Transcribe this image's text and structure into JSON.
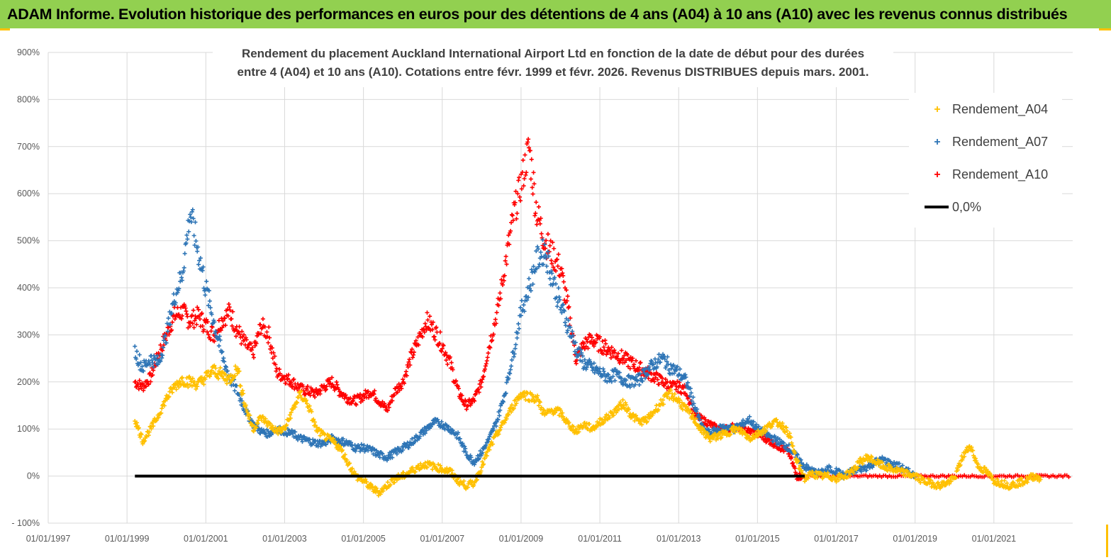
{
  "header": {
    "title": "ADAM Informe. Evolution historique des performances en euros pour des détentions de 4 ans (A04) à 10 ans (A10) avec les revenus connus distribués"
  },
  "colors": {
    "header_bg": "#92d050",
    "corner": "#ffc000",
    "A04": "#ffc000",
    "A07": "#2e75b6",
    "A10": "#ff0000",
    "zero": "#000000",
    "grid": "#d9d9d9"
  },
  "chart_data": {
    "type": "scatter",
    "title_lines": [
      "Rendement du placement Auckland International Airport Ltd en fonction de la date de début pour des durées",
      "entre 4 (A04) et 10 ans (A10). Cotations entre févr. 1999 et févr. 2026. Revenus DISTRIBUES depuis mars. 2001."
    ],
    "xlabel": "",
    "ylabel": "",
    "x_range": [
      1997.0,
      2023.0
    ],
    "ylim": [
      -100,
      900
    ],
    "y_ticks": [
      -100,
      0,
      100,
      200,
      300,
      400,
      500,
      600,
      700,
      800,
      900
    ],
    "y_tick_labels": [
      "- 100%",
      "0%",
      "100%",
      "200%",
      "300%",
      "400%",
      "500%",
      "600%",
      "700%",
      "800%",
      "900%"
    ],
    "x_tick_labels": [
      "01/01/1997",
      "01/01/1999",
      "01/01/2001",
      "01/01/2003",
      "01/01/2005",
      "01/01/2007",
      "01/01/2009",
      "01/01/2011",
      "01/01/2013",
      "01/01/2015",
      "01/01/2017",
      "01/01/2019",
      "01/01/2021"
    ],
    "x_tick_years": [
      1997,
      1999,
      2001,
      2003,
      2005,
      2007,
      2009,
      2011,
      2013,
      2015,
      2017,
      2019,
      2021
    ],
    "grid": "horizontal and vertical",
    "legend_position": "top-right",
    "series": [
      {
        "name": "Rendement_A04",
        "color": "#ffc000",
        "marker": "+",
        "x": [
          1999.2,
          1999.4,
          1999.6,
          1999.8,
          2000.0,
          2000.2,
          2000.4,
          2000.6,
          2000.8,
          2001.0,
          2001.2,
          2001.4,
          2001.6,
          2001.8,
          2002.0,
          2002.2,
          2002.4,
          2002.6,
          2002.8,
          2003.0,
          2003.2,
          2003.4,
          2003.6,
          2003.8,
          2004.0,
          2004.2,
          2004.4,
          2004.6,
          2004.8,
          2005.0,
          2005.2,
          2005.4,
          2005.6,
          2005.8,
          2006.0,
          2006.2,
          2006.4,
          2006.6,
          2006.8,
          2007.0,
          2007.2,
          2007.4,
          2007.6,
          2007.8,
          2008.0,
          2008.2,
          2008.4,
          2008.6,
          2008.8,
          2009.0,
          2009.2,
          2009.4,
          2009.6,
          2009.8,
          2010.0,
          2010.2,
          2010.4,
          2010.6,
          2010.8,
          2011.0,
          2011.2,
          2011.4,
          2011.6,
          2011.8,
          2012.0,
          2012.2,
          2012.4,
          2012.6,
          2012.8,
          2013.0,
          2013.2,
          2013.4,
          2013.6,
          2013.8,
          2014.0,
          2014.2,
          2014.4,
          2014.6,
          2014.8,
          2015.0,
          2015.2,
          2015.4,
          2015.6,
          2015.8,
          2016.0,
          2016.2,
          2016.4,
          2016.6,
          2016.8,
          2017.0,
          2017.2,
          2017.4,
          2017.6,
          2017.8,
          2018.0,
          2018.2,
          2018.4,
          2018.6,
          2018.8,
          2019.0,
          2019.2,
          2019.4,
          2019.6,
          2019.8,
          2020.0,
          2020.2,
          2020.4,
          2020.6,
          2020.8,
          2021.0,
          2021.2,
          2021.4,
          2021.6,
          2021.8,
          2022.0,
          2022.2
        ],
        "y": [
          120,
          75,
          100,
          130,
          165,
          190,
          205,
          200,
          195,
          210,
          225,
          215,
          205,
          230,
          150,
          100,
          125,
          110,
          95,
          100,
          140,
          175,
          150,
          100,
          85,
          75,
          60,
          30,
          0,
          -10,
          -25,
          -35,
          -20,
          -5,
          0,
          10,
          20,
          25,
          20,
          15,
          10,
          -10,
          -20,
          -15,
          20,
          60,
          90,
          120,
          150,
          175,
          170,
          165,
          130,
          140,
          135,
          110,
          95,
          110,
          100,
          115,
          125,
          140,
          155,
          130,
          115,
          120,
          140,
          160,
          175,
          160,
          140,
          120,
          95,
          80,
          85,
          90,
          100,
          95,
          80,
          90,
          100,
          115,
          110,
          90,
          30,
          -5,
          5,
          0,
          0,
          -5,
          0,
          10,
          30,
          40,
          30,
          20,
          15,
          10,
          5,
          0,
          -10,
          -15,
          -20,
          -15,
          -5,
          40,
          65,
          20,
          10,
          -10,
          -15,
          -20,
          -15,
          -10,
          0,
          -5
        ],
        "y_extra_scatter": "dense band around series"
      },
      {
        "name": "Rendement_A07",
        "color": "#2e75b6",
        "marker": "+",
        "x": [
          1999.2,
          1999.4,
          1999.6,
          1999.8,
          2000.0,
          2000.2,
          2000.4,
          2000.6,
          2000.8,
          2001.0,
          2001.2,
          2001.4,
          2001.6,
          2001.8,
          2002.0,
          2002.2,
          2002.4,
          2002.6,
          2002.8,
          2003.0,
          2003.2,
          2003.4,
          2003.6,
          2003.8,
          2004.0,
          2004.2,
          2004.4,
          2004.6,
          2004.8,
          2005.0,
          2005.2,
          2005.4,
          2005.6,
          2005.8,
          2006.0,
          2006.2,
          2006.4,
          2006.6,
          2006.8,
          2007.0,
          2007.2,
          2007.4,
          2007.6,
          2007.8,
          2008.0,
          2008.2,
          2008.4,
          2008.6,
          2008.8,
          2009.0,
          2009.2,
          2009.4,
          2009.6,
          2009.8,
          2010.0,
          2010.2,
          2010.4,
          2010.6,
          2010.8,
          2011.0,
          2011.2,
          2011.4,
          2011.6,
          2011.8,
          2012.0,
          2012.2,
          2012.4,
          2012.6,
          2012.8,
          2013.0,
          2013.2,
          2013.4,
          2013.6,
          2013.8,
          2014.0,
          2014.2,
          2014.4,
          2014.6,
          2014.8,
          2015.0,
          2015.2,
          2015.4,
          2015.6,
          2015.8,
          2016.0,
          2016.2,
          2016.4,
          2016.6,
          2016.8,
          2017.0,
          2017.2,
          2017.4,
          2017.6,
          2017.8,
          2018.0,
          2018.2,
          2018.4,
          2018.6,
          2018.8,
          2019.0
        ],
        "y": [
          265,
          230,
          250,
          240,
          300,
          380,
          430,
          560,
          480,
          400,
          330,
          260,
          210,
          180,
          140,
          110,
          95,
          90,
          100,
          95,
          90,
          80,
          75,
          70,
          70,
          80,
          75,
          70,
          60,
          60,
          55,
          45,
          40,
          50,
          60,
          70,
          85,
          100,
          115,
          110,
          100,
          85,
          50,
          30,
          50,
          80,
          120,
          180,
          260,
          350,
          400,
          460,
          480,
          420,
          360,
          320,
          270,
          240,
          230,
          220,
          210,
          215,
          205,
          200,
          205,
          225,
          240,
          250,
          230,
          220,
          200,
          150,
          100,
          90,
          100,
          105,
          100,
          110,
          120,
          100,
          90,
          80,
          70,
          60,
          40,
          20,
          10,
          5,
          15,
          10,
          0,
          10,
          15,
          20,
          30,
          35,
          25,
          20,
          10,
          0
        ],
        "y_extra_scatter": "dense band around series"
      },
      {
        "name": "Rendement_A10",
        "color": "#ff0000",
        "marker": "+",
        "x": [
          1999.2,
          1999.4,
          1999.6,
          1999.8,
          2000.0,
          2000.2,
          2000.4,
          2000.6,
          2000.8,
          2001.0,
          2001.2,
          2001.4,
          2001.6,
          2001.8,
          2002.0,
          2002.2,
          2002.4,
          2002.6,
          2002.8,
          2003.0,
          2003.2,
          2003.4,
          2003.6,
          2003.8,
          2004.0,
          2004.2,
          2004.4,
          2004.6,
          2004.8,
          2005.0,
          2005.2,
          2005.4,
          2005.6,
          2005.8,
          2006.0,
          2006.2,
          2006.4,
          2006.6,
          2006.8,
          2007.0,
          2007.2,
          2007.4,
          2007.6,
          2007.8,
          2008.0,
          2008.2,
          2008.4,
          2008.6,
          2008.8,
          2009.0,
          2009.2,
          2009.4,
          2009.6,
          2009.8,
          2010.0,
          2010.2,
          2010.4,
          2010.6,
          2010.8,
          2011.0,
          2011.2,
          2011.4,
          2011.6,
          2011.8,
          2012.0,
          2012.2,
          2012.4,
          2012.6,
          2012.8,
          2013.0,
          2013.2,
          2013.4,
          2013.6,
          2013.8,
          2014.0,
          2014.2,
          2014.4,
          2014.6,
          2014.8,
          2015.0,
          2015.2,
          2015.4,
          2015.6,
          2015.8,
          2016.0,
          2016.2
        ],
        "y": [
          200,
          190,
          210,
          260,
          300,
          340,
          350,
          330,
          340,
          320,
          300,
          330,
          350,
          310,
          280,
          260,
          320,
          300,
          220,
          210,
          200,
          185,
          180,
          175,
          190,
          200,
          180,
          165,
          160,
          170,
          180,
          160,
          140,
          180,
          200,
          250,
          290,
          330,
          310,
          280,
          240,
          180,
          150,
          160,
          200,
          280,
          350,
          450,
          550,
          620,
          700,
          560,
          500,
          470,
          440,
          350,
          250,
          280,
          290,
          280,
          270,
          260,
          250,
          240,
          230,
          220,
          210,
          200,
          190,
          190,
          180,
          130,
          120,
          110,
          100,
          100,
          105,
          100,
          95,
          90,
          80,
          70,
          60,
          50,
          0,
          0
        ],
        "y_extra_scatter": "dense band around series; flat at 0% from 2016 to 2023"
      },
      {
        "name": "0,0%",
        "color": "#000000",
        "type": "line",
        "y": 0
      }
    ]
  }
}
